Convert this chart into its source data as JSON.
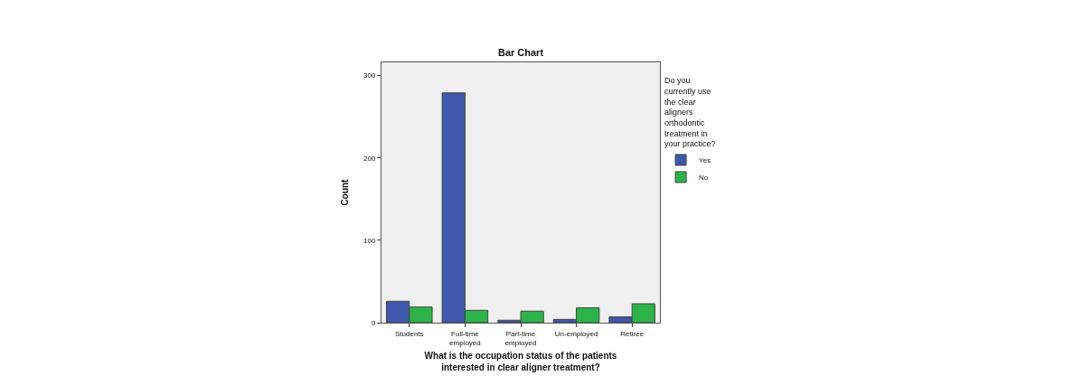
{
  "chart_data": {
    "type": "bar",
    "title": "Bar Chart",
    "xlabel": "What is the occupation status of the patients interested in clear aligner treatment?",
    "ylabel": "Count",
    "legend_title": "Do you currently use the clear aligners orthodontic treatment in your practice?",
    "categories": [
      "Students",
      "Full-time employed",
      "Part-time employed",
      "Un-employed",
      "Retiree"
    ],
    "series": [
      {
        "name": "Yes",
        "color": "#3e58ac",
        "values": [
          26,
          279,
          3,
          4,
          7
        ]
      },
      {
        "name": "No",
        "color": "#2db34a",
        "values": [
          19,
          15,
          14,
          18,
          23
        ]
      }
    ],
    "ylim": [
      0,
      316
    ],
    "yticks": [
      0,
      100,
      200,
      300
    ],
    "grid": false,
    "legend": "top right"
  }
}
